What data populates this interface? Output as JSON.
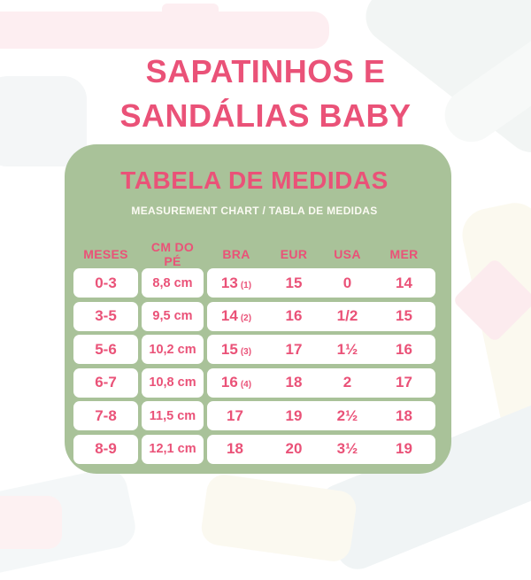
{
  "title": {
    "line1": "SAPATINHOS E",
    "line2": "SANDÁLIAS BABY"
  },
  "colors": {
    "pink": "#ea5278",
    "green": "#a9c299",
    "row_bg": "#ffffff",
    "subheading_text": "#fbfaf3"
  },
  "card": {
    "heading": "TABELA DE MEDIDAS",
    "subheading": "MEASUREMENT CHART / TABLA DE MEDIDAS",
    "columns": [
      "MESES",
      "CM DO PÉ",
      "BRA",
      "EUR",
      "USA",
      "MER"
    ],
    "rows": [
      {
        "meses": "0-3",
        "cm": "8,8 cm",
        "bra": "13",
        "bra_note": "(1)",
        "eur": "15",
        "usa": "0",
        "mer": "14"
      },
      {
        "meses": "3-5",
        "cm": "9,5 cm",
        "bra": "14",
        "bra_note": "(2)",
        "eur": "16",
        "usa": "1/2",
        "mer": "15"
      },
      {
        "meses": "5-6",
        "cm": "10,2 cm",
        "bra": "15",
        "bra_note": "(3)",
        "eur": "17",
        "usa": "1½",
        "mer": "16"
      },
      {
        "meses": "6-7",
        "cm": "10,8 cm",
        "bra": "16",
        "bra_note": "(4)",
        "eur": "18",
        "usa": "2",
        "mer": "17"
      },
      {
        "meses": "7-8",
        "cm": "11,5 cm",
        "bra": "17",
        "bra_note": "",
        "eur": "19",
        "usa": "2½",
        "mer": "18"
      },
      {
        "meses": "8-9",
        "cm": "12,1 cm",
        "bra": "18",
        "bra_note": "",
        "eur": "20",
        "usa": "3½",
        "mer": "19"
      }
    ]
  }
}
